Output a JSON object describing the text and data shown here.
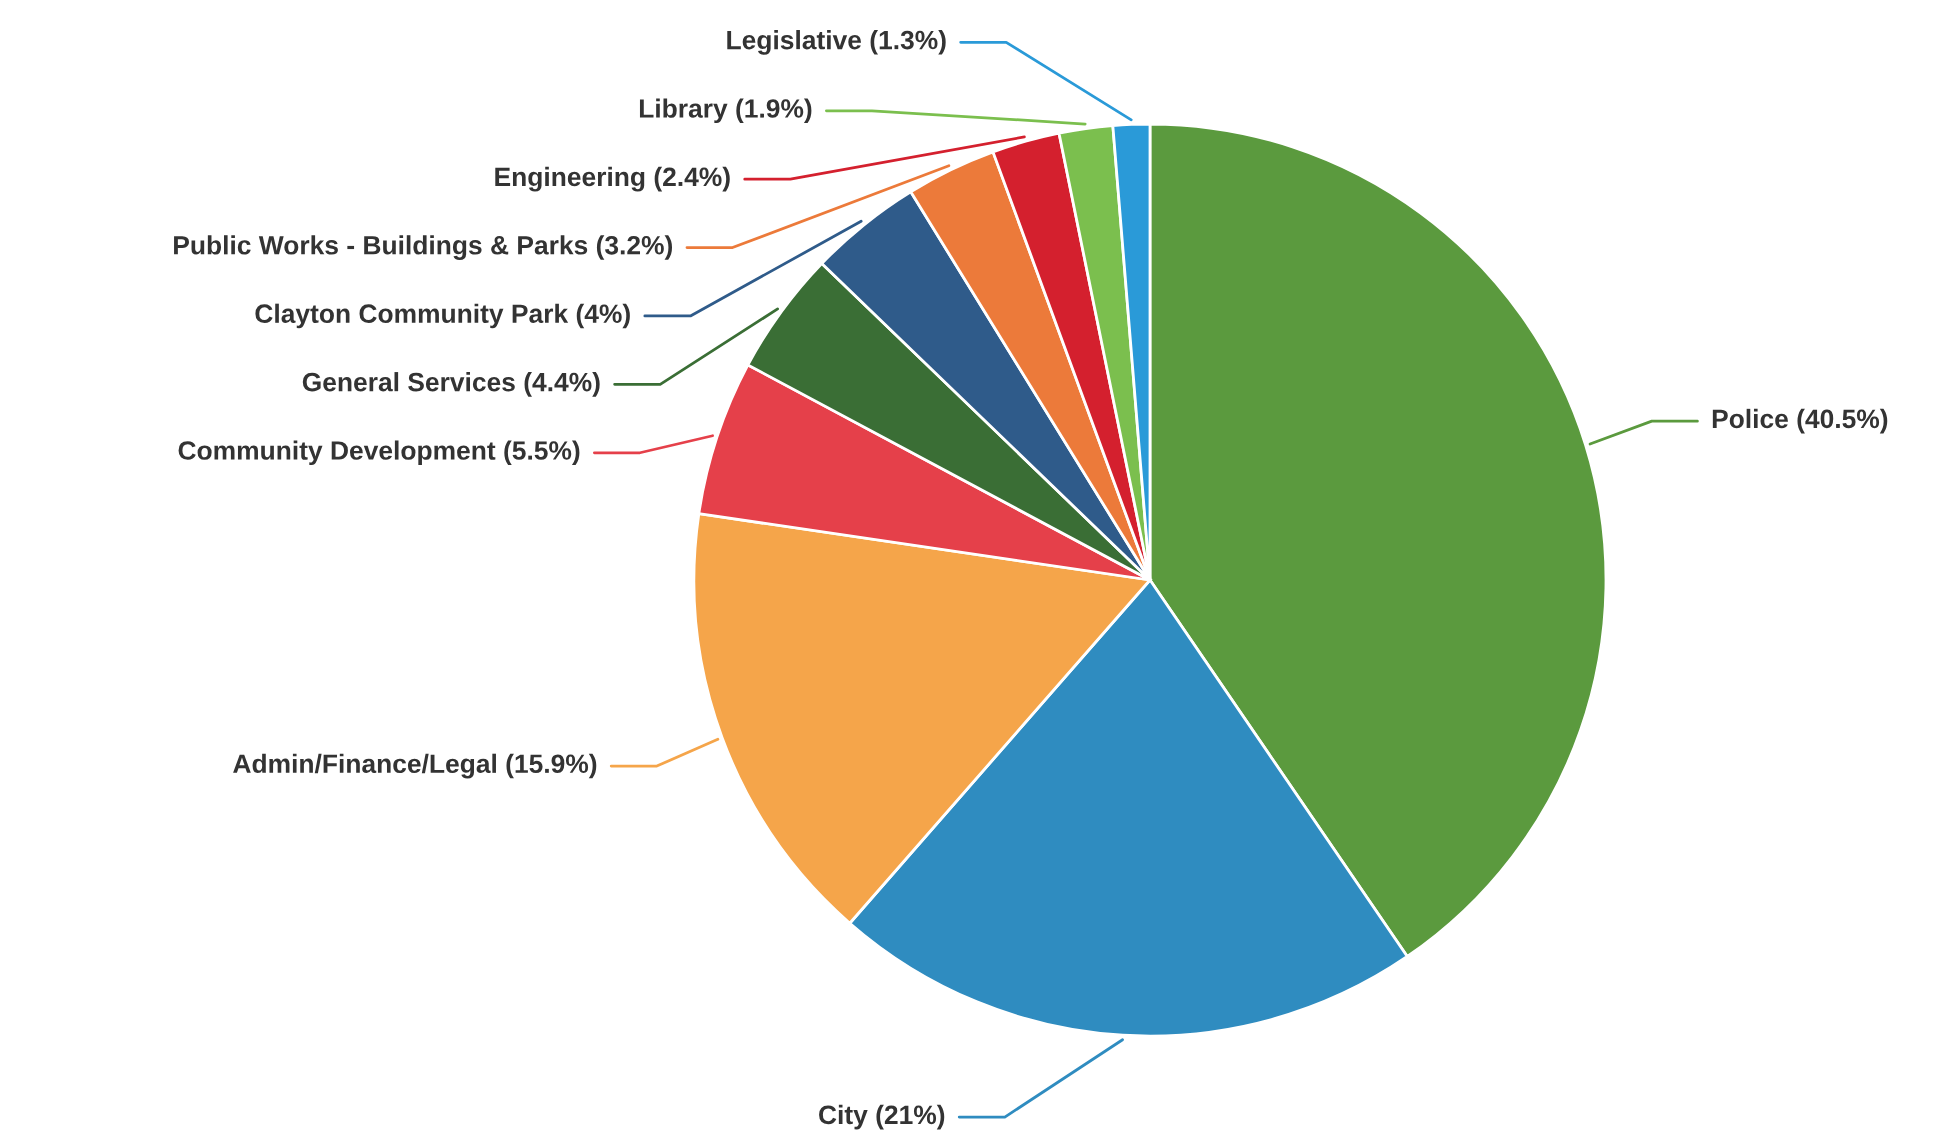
{
  "chart_data": {
    "type": "pie",
    "categories": [
      "Police (40.5%)",
      "City (21%)",
      "Admin/Finance/Legal (15.9%)",
      "Community Development (5.5%)",
      "General Services (4.4%)",
      "Clayton Community Park (4%)",
      "Public Works - Buildings & Parks (3.2%)",
      "Engineering (2.4%)",
      "Library (1.9%)",
      "Legislative (1.3%)"
    ],
    "values": [
      40.5,
      21,
      15.9,
      5.5,
      4.4,
      4,
      3.2,
      2.4,
      1.9,
      1.3
    ],
    "colors": [
      "#5b9a3e",
      "#2f8cc0",
      "#f5a54a",
      "#e5404a",
      "#3a6e35",
      "#2f5b8a",
      "#ec7a3a",
      "#d4202e",
      "#7bbf4e",
      "#2a9ad8"
    ]
  }
}
